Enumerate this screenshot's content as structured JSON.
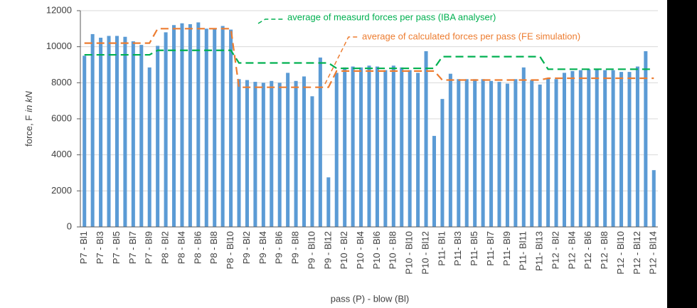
{
  "chart_data": {
    "type": "bar",
    "y_label": "force, F",
    "y_label_unit": "in kN",
    "x_label": "pass (P) - blow (Bl)",
    "categories": [
      "P7 - Bl1",
      null,
      "P7 - Bl3",
      null,
      "P7 - Bl5",
      null,
      "P7 - Bl7",
      null,
      "P7 - Bl9",
      null,
      "P8 - Bl2",
      null,
      "P8 - Bl4",
      null,
      "P8 - Bl6",
      null,
      "P8 - Bl8",
      null,
      "P8 - Bl10",
      null,
      "P9 - Bl2",
      null,
      "P9 - Bl4",
      null,
      "P9 - Bl6",
      null,
      "P9 - Bl8",
      null,
      "P9 - Bl10",
      null,
      "P9 - Bl12",
      null,
      "P10 - Bl2",
      null,
      "P10 - Bl4",
      null,
      "P10 - Bl6",
      null,
      "P10 - Bl8",
      null,
      "P10 - Bl10",
      null,
      "P10 - Bl12",
      null,
      "P11- Bl1",
      null,
      "P11- Bl3",
      null,
      "P11- Bl5",
      null,
      "P11- Bl7",
      null,
      "P11- Bl9",
      null,
      "P11- Bl11",
      null,
      "P11- Bl13",
      null,
      "P12 - Bl2",
      null,
      "P12 - Bl4",
      null,
      "P12 - Bl6",
      null,
      "P12 - Bl8",
      null,
      "P12 - Bl10",
      null,
      "P12 - Bl12",
      null,
      "P12 - Bl14"
    ],
    "values": [
      9500,
      10700,
      10500,
      10600,
      10600,
      10550,
      10300,
      10100,
      8850,
      10050,
      10800,
      11200,
      11300,
      11250,
      11350,
      11000,
      11000,
      11150,
      10950,
      8200,
      8150,
      8050,
      8000,
      8100,
      8000,
      8550,
      8100,
      8350,
      7250,
      9400,
      2750,
      8550,
      8850,
      8900,
      8850,
      8950,
      8900,
      8700,
      8950,
      8850,
      8700,
      8550,
      9750,
      5050,
      7100,
      8500,
      8200,
      8200,
      8200,
      8200,
      8100,
      8050,
      7950,
      8200,
      8850,
      8150,
      7900,
      8250,
      8200,
      8550,
      8650,
      8700,
      8750,
      8750,
      8700,
      8700,
      8600,
      8600,
      8900,
      9750,
      3150
    ],
    "color": "#5b9bd5",
    "series": [
      {
        "name": "average of measurd forces per pass (IBA analyser)",
        "color": "#00b050",
        "values": [
          9550,
          9550,
          9550,
          9550,
          9550,
          9550,
          9550,
          9550,
          9550,
          9800,
          9800,
          9800,
          9800,
          9800,
          9800,
          9800,
          9800,
          9800,
          9800,
          9100,
          9100,
          9100,
          9100,
          9100,
          9100,
          9100,
          9100,
          9100,
          9100,
          9100,
          9100,
          8800,
          8800,
          8800,
          8800,
          8800,
          8800,
          8800,
          8800,
          8800,
          8800,
          8800,
          8800,
          8800,
          9450,
          9450,
          9450,
          9450,
          9450,
          9450,
          9450,
          9450,
          9450,
          9450,
          9450,
          9450,
          9450,
          8750,
          8750,
          8750,
          8750,
          8750,
          8750,
          8750,
          8750,
          8750,
          8750,
          8750,
          8750,
          8750,
          8750
        ]
      },
      {
        "name": "average of calculated forces per pass (FE simulation)",
        "color": "#ed7d31",
        "values": [
          10200,
          10200,
          10200,
          10200,
          10200,
          10200,
          10200,
          10200,
          10200,
          11000,
          11000,
          11000,
          11000,
          11000,
          11000,
          11000,
          11000,
          11000,
          11000,
          7750,
          7750,
          7750,
          7750,
          7750,
          7750,
          7750,
          7750,
          7750,
          7750,
          7750,
          7750,
          8650,
          8650,
          8650,
          8650,
          8650,
          8650,
          8650,
          8650,
          8650,
          8650,
          8650,
          8650,
          8650,
          8150,
          8150,
          8150,
          8150,
          8150,
          8150,
          8150,
          8150,
          8150,
          8150,
          8150,
          8150,
          8150,
          8250,
          8250,
          8250,
          8250,
          8250,
          8250,
          8250,
          8250,
          8250,
          8250,
          8250,
          8250,
          8250,
          8250
        ]
      }
    ],
    "ylim": [
      0,
      12000
    ],
    "yticks": [
      0,
      2000,
      4000,
      6000,
      8000,
      10000,
      12000
    ],
    "grid": true
  }
}
